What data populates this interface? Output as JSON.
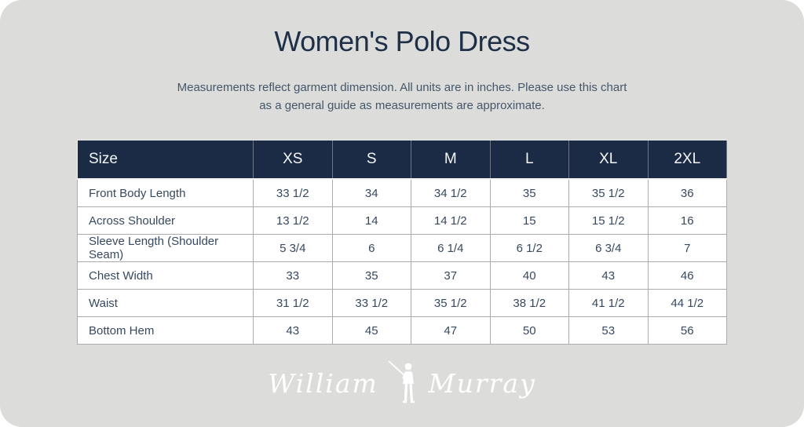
{
  "page": {
    "title": "Women's Polo Dress",
    "subtitle_line1": "Measurements reflect garment dimension. All units are in inches. Please use this chart",
    "subtitle_line2": "as a general guide as measurements are approximate."
  },
  "chart_data": {
    "type": "table",
    "title": "Women's Polo Dress",
    "units": "inches",
    "columns": [
      "Size",
      "XS",
      "S",
      "M",
      "L",
      "XL",
      "2XL"
    ],
    "rows": [
      {
        "label": "Front Body Length",
        "values": [
          "33 1/2",
          "34",
          "34 1/2",
          "35",
          "35 1/2",
          "36"
        ]
      },
      {
        "label": "Across Shoulder",
        "values": [
          "13 1/2",
          "14",
          "14 1/2",
          "15",
          "15 1/2",
          "16"
        ]
      },
      {
        "label": "Sleeve Length (Shoulder Seam)",
        "values": [
          "5 3/4",
          "6",
          "6 1/4",
          "6 1/2",
          "6 3/4",
          "7"
        ]
      },
      {
        "label": "Chest Width",
        "values": [
          "33",
          "35",
          "37",
          "40",
          "43",
          "46"
        ]
      },
      {
        "label": "Waist",
        "values": [
          "31 1/2",
          "33 1/2",
          "35 1/2",
          "38 1/2",
          "41 1/2",
          "44 1/2"
        ]
      },
      {
        "label": "Bottom Hem",
        "values": [
          "43",
          "45",
          "47",
          "50",
          "53",
          "56"
        ]
      }
    ]
  },
  "brand": {
    "logo_text_1": "William",
    "logo_text_2": "Murray",
    "golfer_icon": "golfer-swinging-golf-club"
  },
  "colors": {
    "card_background": "#dcdcda",
    "title_text": "#1e3048",
    "subtitle_text": "#45566a",
    "header_background": "#1c2b45",
    "header_text": "#f3f5f7",
    "cell_background": "#ffffff",
    "body_text": "#37495f",
    "cell_border": "#ababab",
    "logo_color": "#ffffff"
  }
}
